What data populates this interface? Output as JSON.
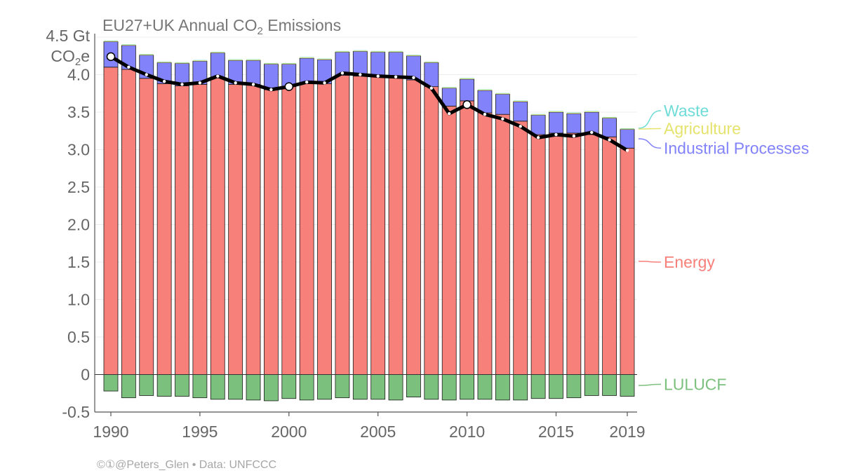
{
  "title_prefix": "EU27+UK Annual CO",
  "title_sub": "2",
  "title_suffix": " Emissions",
  "ylabel_top": "4.5 Gt",
  "ylabel_bottom_prefix": "CO",
  "ylabel_bottom_sub": "2",
  "ylabel_bottom_suffix": "e",
  "credit": "©①@Peters_Glen  •  Data: UNFCCC",
  "colors": {
    "energy": "#f8807a",
    "industrial": "#8282fa",
    "agriculture": "#e5e36d",
    "waste": "#6fdcd8",
    "lulucf": "#7cc07e",
    "total_line": "#000000"
  },
  "chart_data": {
    "type": "bar",
    "stacked": true,
    "title": "EU27+UK Annual CO2 Emissions",
    "ylabel": "4.5 Gt CO2e",
    "ylim": [
      -0.5,
      4.5
    ],
    "yticks": [
      "4.0",
      "3.5",
      "3.0",
      "2.5",
      "2.0",
      "1.5",
      "1.0",
      "0.5",
      "0",
      "-0.5"
    ],
    "ytick_values": [
      4.0,
      3.5,
      3.0,
      2.5,
      2.0,
      1.5,
      1.0,
      0.5,
      0,
      -0.5
    ],
    "xticks": [
      "1990",
      "1995",
      "2000",
      "2005",
      "2010",
      "2015",
      "2019"
    ],
    "xtick_values": [
      1990,
      1995,
      2000,
      2005,
      2010,
      2015,
      2019
    ],
    "x": [
      1990,
      1991,
      1992,
      1993,
      1994,
      1995,
      1996,
      1997,
      1998,
      1999,
      2000,
      2001,
      2002,
      2003,
      2004,
      2005,
      2006,
      2007,
      2008,
      2009,
      2010,
      2011,
      2012,
      2013,
      2014,
      2015,
      2016,
      2017,
      2018,
      2019
    ],
    "series": [
      {
        "name": "Energy",
        "key": "energy",
        "values": [
          4.1,
          4.07,
          3.95,
          3.88,
          3.85,
          3.87,
          3.96,
          3.87,
          3.87,
          3.8,
          3.84,
          3.88,
          3.88,
          3.99,
          3.98,
          3.97,
          3.96,
          3.93,
          3.84,
          3.58,
          3.65,
          3.49,
          3.47,
          3.38,
          3.2,
          3.22,
          3.22,
          3.2,
          3.17,
          3.02
        ]
      },
      {
        "name": "Industrial Processes",
        "key": "industrial",
        "values": [
          0.34,
          0.32,
          0.31,
          0.28,
          0.3,
          0.31,
          0.33,
          0.32,
          0.32,
          0.34,
          0.3,
          0.34,
          0.32,
          0.31,
          0.33,
          0.33,
          0.34,
          0.32,
          0.32,
          0.24,
          0.29,
          0.3,
          0.27,
          0.26,
          0.26,
          0.28,
          0.26,
          0.3,
          0.25,
          0.25
        ]
      },
      {
        "name": "Agriculture",
        "key": "agriculture",
        "values": [
          0.01,
          0.01,
          0.01,
          0.01,
          0.01,
          0.01,
          0.01,
          0.01,
          0.01,
          0.01,
          0.01,
          0.01,
          0.01,
          0.01,
          0.01,
          0.01,
          0.01,
          0.01,
          0.01,
          0.01,
          0.01,
          0.01,
          0.01,
          0.01,
          0.01,
          0.01,
          0.01,
          0.01,
          0.01,
          0.01
        ]
      },
      {
        "name": "Waste",
        "key": "waste",
        "values": [
          0.005,
          0.005,
          0.005,
          0.005,
          0.005,
          0.005,
          0.005,
          0.005,
          0.005,
          0.005,
          0.005,
          0.005,
          0.005,
          0.005,
          0.005,
          0.005,
          0.005,
          0.005,
          0.005,
          0.005,
          0.005,
          0.005,
          0.005,
          0.005,
          0.005,
          0.005,
          0.005,
          0.005,
          0.005,
          0.005
        ]
      },
      {
        "name": "LULUCF",
        "key": "lulucf",
        "values": [
          -0.22,
          -0.31,
          -0.28,
          -0.29,
          -0.29,
          -0.31,
          -0.33,
          -0.33,
          -0.34,
          -0.35,
          -0.32,
          -0.34,
          -0.33,
          -0.31,
          -0.33,
          -0.33,
          -0.34,
          -0.3,
          -0.33,
          -0.34,
          -0.33,
          -0.33,
          -0.34,
          -0.34,
          -0.32,
          -0.32,
          -0.31,
          -0.28,
          -0.28,
          -0.29
        ]
      }
    ],
    "total_line": {
      "values": [
        4.24,
        4.1,
        4.0,
        3.91,
        3.87,
        3.89,
        3.98,
        3.89,
        3.87,
        3.8,
        3.84,
        3.9,
        3.89,
        4.02,
        4.0,
        3.98,
        3.97,
        3.96,
        3.82,
        3.48,
        3.6,
        3.47,
        3.41,
        3.31,
        3.16,
        3.2,
        3.18,
        3.23,
        3.13,
        2.99
      ],
      "highlighted_years": [
        1990,
        2000,
        2010
      ]
    },
    "legend": [
      {
        "label": "Waste",
        "key": "waste",
        "placement": "right"
      },
      {
        "label": "Agriculture",
        "key": "agriculture",
        "placement": "right"
      },
      {
        "label": "Industrial Processes",
        "key": "industrial",
        "placement": "right"
      },
      {
        "label": "Energy",
        "key": "energy",
        "placement": "right"
      },
      {
        "label": "LULUCF",
        "key": "lulucf",
        "placement": "right"
      }
    ],
    "grid": true
  }
}
